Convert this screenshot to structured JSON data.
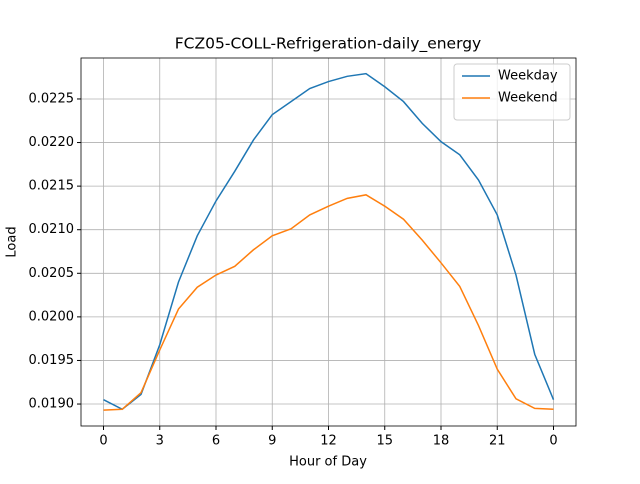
{
  "chart_data": {
    "type": "line",
    "title": "FCZ05-COLL-Refrigeration-daily_energy",
    "x_label": "Hour of Day",
    "y_label": "Load",
    "x": [
      0,
      1,
      2,
      3,
      4,
      5,
      6,
      7,
      8,
      9,
      10,
      11,
      12,
      13,
      14,
      15,
      16,
      17,
      18,
      19,
      20,
      21,
      22,
      23,
      24
    ],
    "series": [
      {
        "name": "Weekday",
        "color": "#1f77b4",
        "values": [
          0.01905,
          0.01894,
          0.01911,
          0.01968,
          0.0204,
          0.02093,
          0.02133,
          0.02167,
          0.02203,
          0.02232,
          0.02247,
          0.02262,
          0.0227,
          0.02276,
          0.02279,
          0.02264,
          0.02247,
          0.02222,
          0.02201,
          0.02186,
          0.02157,
          0.02117,
          0.02048,
          0.01957,
          0.01905
        ]
      },
      {
        "name": "Weekend",
        "color": "#ff7f0e",
        "values": [
          0.01893,
          0.01894,
          0.01913,
          0.01962,
          0.02009,
          0.02034,
          0.02048,
          0.02058,
          0.02077,
          0.02093,
          0.02101,
          0.02117,
          0.02127,
          0.02136,
          0.0214,
          0.02127,
          0.02112,
          0.02088,
          0.02062,
          0.02035,
          0.0199,
          0.0194,
          0.01906,
          0.01895,
          0.01894
        ]
      }
    ],
    "xlim": [
      -1.2,
      25.2
    ],
    "xticks": [
      0,
      3,
      6,
      9,
      12,
      15,
      18,
      21,
      {
        "value": 24,
        "label": "0"
      }
    ],
    "ylim": [
      0.018748,
      0.02297
    ],
    "yticks": [
      {
        "value": 0.019,
        "label": "0.0190"
      },
      {
        "value": 0.0195,
        "label": "0.0195"
      },
      {
        "value": 0.02,
        "label": "0.0200"
      },
      {
        "value": 0.0205,
        "label": "0.0205"
      },
      {
        "value": 0.021,
        "label": "0.0210"
      },
      {
        "value": 0.0215,
        "label": "0.0215"
      },
      {
        "value": 0.022,
        "label": "0.0220"
      },
      {
        "value": 0.0225,
        "label": "0.0225"
      }
    ],
    "grid": true,
    "legend": "upper-right"
  }
}
